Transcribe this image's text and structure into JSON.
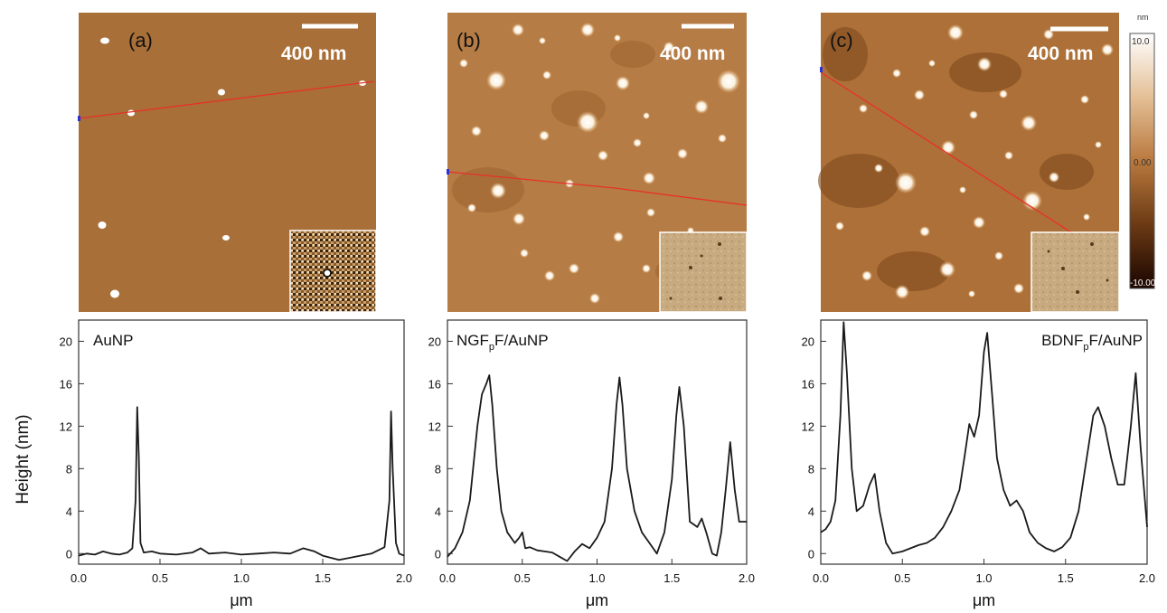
{
  "figure": {
    "ylabel": "Height (nm)",
    "xlabel": "μm",
    "colorbar": {
      "unit": "nm",
      "top_label": "10.0",
      "mid_label": "0.00",
      "bottom_label": "-10.00"
    }
  },
  "panels": [
    {
      "id": "a",
      "panel_label": "(a)",
      "scale_label": "400 nm"
    },
    {
      "id": "b",
      "panel_label": "(b)",
      "scale_label": "400 nm"
    },
    {
      "id": "c",
      "panel_label": "(c)",
      "scale_label": "400 nm"
    }
  ],
  "chart_data": [
    {
      "type": "line",
      "title": "AuNP",
      "xlabel": "μm",
      "ylabel": "Height (nm)",
      "xlim": [
        0,
        2.0
      ],
      "ylim": [
        -1,
        22
      ],
      "xticks": [
        "0.0",
        "0.5",
        "1.0",
        "1.5",
        "2.0"
      ],
      "yticks": [
        "0",
        "4",
        "8",
        "12",
        "16",
        "20"
      ],
      "series": [
        {
          "x": [
            0.0,
            0.05,
            0.1,
            0.15,
            0.2,
            0.25,
            0.3,
            0.33,
            0.35,
            0.36,
            0.37,
            0.38,
            0.4,
            0.45,
            0.5,
            0.6,
            0.7,
            0.75,
            0.8,
            0.9,
            1.0,
            1.1,
            1.2,
            1.3,
            1.38,
            1.45,
            1.5,
            1.6,
            1.7,
            1.8,
            1.88,
            1.91,
            1.92,
            1.93,
            1.95,
            1.97,
            2.0
          ],
          "y": [
            -0.2,
            0.0,
            -0.1,
            0.2,
            0.0,
            -0.1,
            0.1,
            0.5,
            5.0,
            13.8,
            9.0,
            1.0,
            0.1,
            0.2,
            0.0,
            -0.1,
            0.1,
            0.5,
            0.0,
            0.1,
            -0.1,
            0.0,
            0.1,
            0.0,
            0.5,
            0.2,
            -0.2,
            -0.6,
            -0.3,
            0.0,
            0.6,
            5.0,
            13.4,
            8.0,
            1.0,
            0.0,
            -0.2
          ]
        }
      ]
    },
    {
      "type": "line",
      "title": "NGF",
      "title_sub": "p",
      "title_suffix": "F/AuNP",
      "xlabel": "μm",
      "xlim": [
        0,
        2.0
      ],
      "ylim": [
        -1,
        22
      ],
      "xticks": [
        "0.0",
        "0.5",
        "1.0",
        "1.5",
        "2.0"
      ],
      "yticks": [
        "0",
        "4",
        "8",
        "12",
        "16",
        "20"
      ],
      "series": [
        {
          "x": [
            0.0,
            0.05,
            0.1,
            0.15,
            0.2,
            0.23,
            0.26,
            0.28,
            0.3,
            0.33,
            0.36,
            0.4,
            0.45,
            0.48,
            0.5,
            0.52,
            0.55,
            0.6,
            0.65,
            0.7,
            0.75,
            0.8,
            0.85,
            0.9,
            0.95,
            1.0,
            1.05,
            1.1,
            1.13,
            1.15,
            1.17,
            1.2,
            1.25,
            1.3,
            1.35,
            1.4,
            1.45,
            1.5,
            1.53,
            1.55,
            1.58,
            1.62,
            1.67,
            1.7,
            1.73,
            1.77,
            1.8,
            1.83,
            1.86,
            1.89,
            1.92,
            1.95,
            2.0
          ],
          "y": [
            -0.3,
            0.5,
            2.0,
            5.0,
            12.0,
            15.0,
            16.0,
            16.8,
            14.0,
            8.0,
            4.0,
            2.0,
            1.0,
            1.5,
            2.0,
            0.5,
            0.6,
            0.3,
            0.2,
            0.1,
            -0.3,
            -0.7,
            0.2,
            0.9,
            0.5,
            1.5,
            3.0,
            8.0,
            14.0,
            16.6,
            14.0,
            8.0,
            4.0,
            2.0,
            1.0,
            0.0,
            2.0,
            7.0,
            13.0,
            15.7,
            12.0,
            3.0,
            2.5,
            3.3,
            2.0,
            0.0,
            -0.2,
            2.0,
            6.0,
            10.5,
            6.0,
            3.0,
            3.0
          ]
        }
      ]
    },
    {
      "type": "line",
      "title": "BDNF",
      "title_sub": "p",
      "title_suffix": "F/AuNP",
      "xlabel": "μm",
      "xlim": [
        0,
        2.0
      ],
      "ylim": [
        -1,
        22
      ],
      "xticks": [
        "0.0",
        "0.5",
        "1.0",
        "1.5",
        "2.0"
      ],
      "yticks": [
        "0",
        "4",
        "8",
        "12",
        "16",
        "20"
      ],
      "series": [
        {
          "x": [
            0.0,
            0.03,
            0.06,
            0.09,
            0.12,
            0.14,
            0.16,
            0.19,
            0.22,
            0.26,
            0.3,
            0.33,
            0.36,
            0.4,
            0.44,
            0.5,
            0.55,
            0.6,
            0.65,
            0.7,
            0.75,
            0.8,
            0.85,
            0.88,
            0.91,
            0.94,
            0.97,
            1.0,
            1.02,
            1.05,
            1.08,
            1.12,
            1.16,
            1.2,
            1.24,
            1.28,
            1.33,
            1.38,
            1.43,
            1.48,
            1.53,
            1.58,
            1.63,
            1.67,
            1.7,
            1.74,
            1.78,
            1.82,
            1.86,
            1.9,
            1.93,
            1.96,
            2.0
          ],
          "y": [
            2.0,
            2.3,
            3.0,
            5.0,
            13.0,
            21.8,
            17.0,
            8.0,
            4.0,
            4.5,
            6.5,
            7.5,
            4.0,
            1.0,
            0.0,
            0.2,
            0.5,
            0.8,
            1.0,
            1.5,
            2.5,
            4.0,
            6.0,
            9.0,
            12.2,
            11.0,
            13.0,
            19.0,
            20.8,
            15.0,
            9.0,
            6.0,
            4.5,
            5.0,
            4.0,
            2.0,
            1.0,
            0.5,
            0.2,
            0.6,
            1.5,
            4.0,
            9.0,
            13.0,
            13.8,
            12.0,
            9.0,
            6.5,
            6.5,
            12.0,
            17.0,
            10.0,
            2.5
          ]
        }
      ]
    }
  ]
}
